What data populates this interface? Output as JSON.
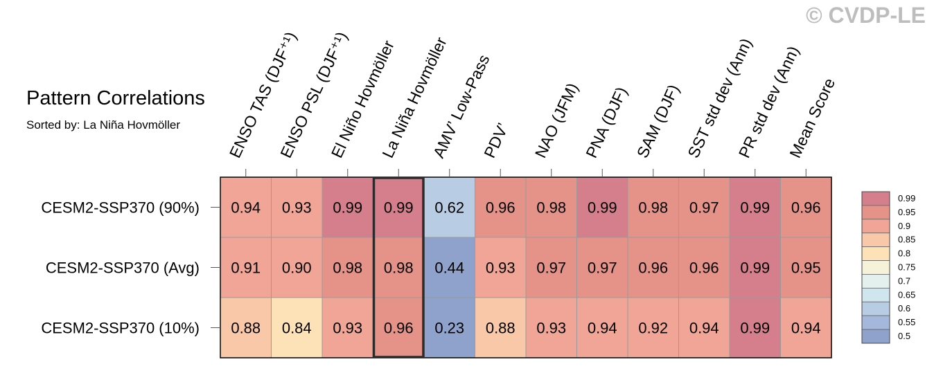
{
  "header": {
    "title": "Pattern Correlations",
    "subtitle": "Sorted by: La Niña Hovmöller",
    "watermark": "© CVDP-LE"
  },
  "chart_data": {
    "type": "heatmap",
    "columns": [
      "ENSO TAS (DJF⁺¹)",
      "ENSO PSL (DJF⁺¹)",
      "El Niño Hovmöller",
      "La Niña Hovmöller",
      "AMV’ Low-Pass",
      "PDV’",
      "NAO (JFM)",
      "PNA (DJF)",
      "SAM (DJF)",
      "SST std dev (Ann)",
      "PR std dev (Ann)",
      "Mean Score"
    ],
    "rows": [
      "CESM2-SSP370 (90%)",
      "CESM2-SSP370 (Avg)",
      "CESM2-SSP370 (10%)"
    ],
    "values": [
      [
        0.94,
        0.93,
        0.99,
        0.99,
        0.62,
        0.96,
        0.98,
        0.99,
        0.98,
        0.97,
        0.99,
        0.96
      ],
      [
        0.91,
        0.9,
        0.98,
        0.98,
        0.44,
        0.93,
        0.97,
        0.97,
        0.96,
        0.96,
        0.99,
        0.95
      ],
      [
        0.88,
        0.84,
        0.93,
        0.96,
        0.23,
        0.88,
        0.93,
        0.94,
        0.92,
        0.94,
        0.99,
        0.94
      ]
    ],
    "highlighted_column": "La Niña Hovmöller",
    "colorbar": {
      "labels": [
        "0.99",
        "0.95",
        "0.9",
        "0.85",
        "0.8",
        "0.75",
        "0.7",
        "0.65",
        "0.6",
        "0.55",
        "0.5"
      ],
      "colors": [
        "#d67f8c",
        "#e59289",
        "#f0a596",
        "#f8c8a8",
        "#fde2b8",
        "#f6f2da",
        "#e4f0ee",
        "#d0e6ef",
        "#b8cde4",
        "#a3b8db",
        "#8fa2cc"
      ]
    }
  }
}
